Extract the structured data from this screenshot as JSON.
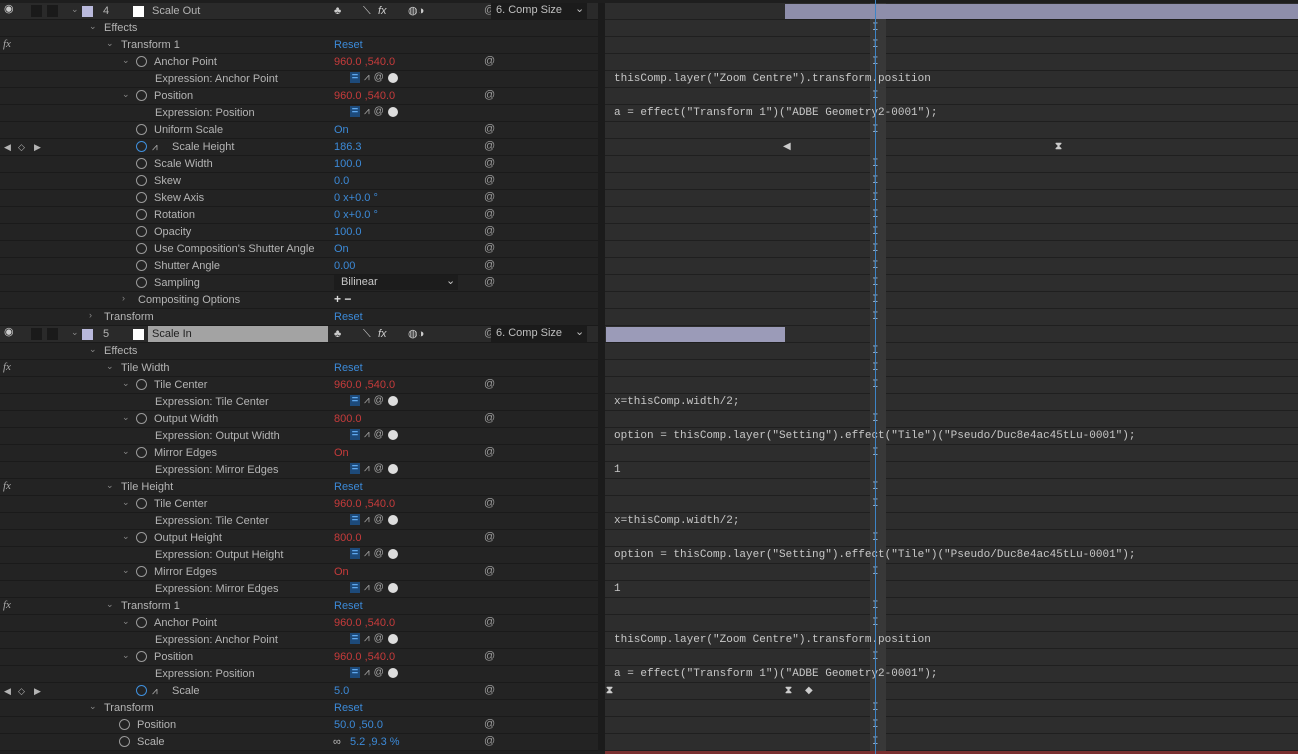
{
  "colors": {
    "accent_blue": "#3c8ad8",
    "value_red": "#c63b3b",
    "layer_label": "#b9b9dc",
    "cti": "#3d84c6"
  },
  "reset_label": "Reset",
  "layers": [
    {
      "number": "4",
      "name": "Scale Out",
      "mode": "6. Comp Size",
      "selected": false
    },
    {
      "number": "5",
      "name": "Scale In",
      "mode": "6. Comp Size",
      "selected": true
    }
  ],
  "rows": [
    {
      "type": "layer",
      "layer": 0
    },
    {
      "type": "group",
      "level": 0,
      "label": "Effects",
      "open": true
    },
    {
      "type": "effect",
      "level": 1,
      "label": "Transform 1",
      "value": "Reset"
    },
    {
      "type": "prop",
      "label": "Anchor Point",
      "value": "960.0 ,540.0",
      "color": "red",
      "twirl": true
    },
    {
      "type": "expr",
      "label": "Expression: Anchor Point",
      "code": "thisComp.layer(\"Zoom Centre\").transform.position"
    },
    {
      "type": "prop",
      "label": "Position",
      "value": "960.0 ,540.0",
      "color": "red",
      "twirl": true
    },
    {
      "type": "expr",
      "label": "Expression: Position",
      "code": "a = effect(\"Transform 1\")(\"ADBE Geometry2-0001\");"
    },
    {
      "type": "prop",
      "label": "Uniform Scale",
      "value": "On"
    },
    {
      "type": "prop",
      "label": "Scale Height",
      "value": "186.3",
      "animated": true,
      "keyframes": [
        "out",
        1055
      ]
    },
    {
      "type": "prop",
      "label": "Scale Width",
      "value": "100.0"
    },
    {
      "type": "prop",
      "label": "Skew",
      "value": "0.0"
    },
    {
      "type": "prop",
      "label": "Skew Axis",
      "value": "0 x+0.0 °"
    },
    {
      "type": "prop",
      "label": "Rotation",
      "value": "0 x+0.0 °"
    },
    {
      "type": "prop",
      "label": "Opacity",
      "value": "100.0"
    },
    {
      "type": "prop",
      "label": "Use Composition's Shutter Angle",
      "value": "On"
    },
    {
      "type": "prop",
      "label": "Shutter Angle",
      "value": "0.00"
    },
    {
      "type": "prop",
      "label": "Sampling",
      "dropdown": "Bilinear"
    },
    {
      "type": "subgroup",
      "label": "Compositing Options",
      "value": "+ −"
    },
    {
      "type": "group",
      "level": 0,
      "label": "Transform",
      "open": false,
      "value": "Reset"
    },
    {
      "type": "layer",
      "layer": 1
    },
    {
      "type": "group",
      "level": 0,
      "label": "Effects",
      "open": true
    },
    {
      "type": "effect",
      "level": 1,
      "label": "Tile Width",
      "value": "Reset"
    },
    {
      "type": "prop",
      "label": "Tile Center",
      "value": "960.0 ,540.0",
      "color": "red",
      "twirl": true
    },
    {
      "type": "expr",
      "label": "Expression: Tile Center",
      "code": "x=thisComp.width/2;"
    },
    {
      "type": "prop",
      "label": "Output Width",
      "value": "800.0",
      "color": "red",
      "twirl": true
    },
    {
      "type": "expr",
      "label": "Expression: Output Width",
      "code": "option = thisComp.layer(\"Setting\").effect(\"Tile\")(\"Pseudo/Duc8e4ac45tLu-0001\");"
    },
    {
      "type": "prop",
      "label": "Mirror Edges",
      "value": "On",
      "color": "red",
      "twirl": true
    },
    {
      "type": "expr",
      "label": "Expression: Mirror Edges",
      "code": "1"
    },
    {
      "type": "effect",
      "level": 1,
      "label": "Tile Height",
      "value": "Reset"
    },
    {
      "type": "prop",
      "label": "Tile Center",
      "value": "960.0 ,540.0",
      "color": "red",
      "twirl": true
    },
    {
      "type": "expr",
      "label": "Expression: Tile Center",
      "code": "x=thisComp.width/2;"
    },
    {
      "type": "prop",
      "label": "Output Height",
      "value": "800.0",
      "color": "red",
      "twirl": true
    },
    {
      "type": "expr",
      "label": "Expression: Output Height",
      "code": "option = thisComp.layer(\"Setting\").effect(\"Tile\")(\"Pseudo/Duc8e4ac45tLu-0001\");"
    },
    {
      "type": "prop",
      "label": "Mirror Edges",
      "value": "On",
      "color": "red",
      "twirl": true
    },
    {
      "type": "expr",
      "label": "Expression: Mirror Edges",
      "code": "1"
    },
    {
      "type": "effect",
      "level": 1,
      "label": "Transform 1",
      "value": "Reset"
    },
    {
      "type": "prop",
      "label": "Anchor Point",
      "value": "960.0 ,540.0",
      "color": "red",
      "twirl": true
    },
    {
      "type": "expr",
      "label": "Expression: Anchor Point",
      "code": "thisComp.layer(\"Zoom Centre\").transform.position"
    },
    {
      "type": "prop",
      "label": "Position",
      "value": "960.0 ,540.0",
      "color": "red",
      "twirl": true
    },
    {
      "type": "expr",
      "label": "Expression: Position",
      "code": "a = effect(\"Transform 1\")(\"ADBE Geometry2-0001\");"
    },
    {
      "type": "prop",
      "label": "Scale",
      "value": "5.0",
      "animated": true,
      "keyframes": [
        606,
        785,
        "diamond"
      ]
    },
    {
      "type": "group",
      "level": 0,
      "label": "Transform",
      "open": true,
      "value": "Reset"
    },
    {
      "type": "tprop",
      "label": "Position",
      "value": "50.0 ,50.0"
    },
    {
      "type": "tprop",
      "label": "Scale",
      "value": "5.2 ,9.3 %",
      "link": true
    }
  ]
}
